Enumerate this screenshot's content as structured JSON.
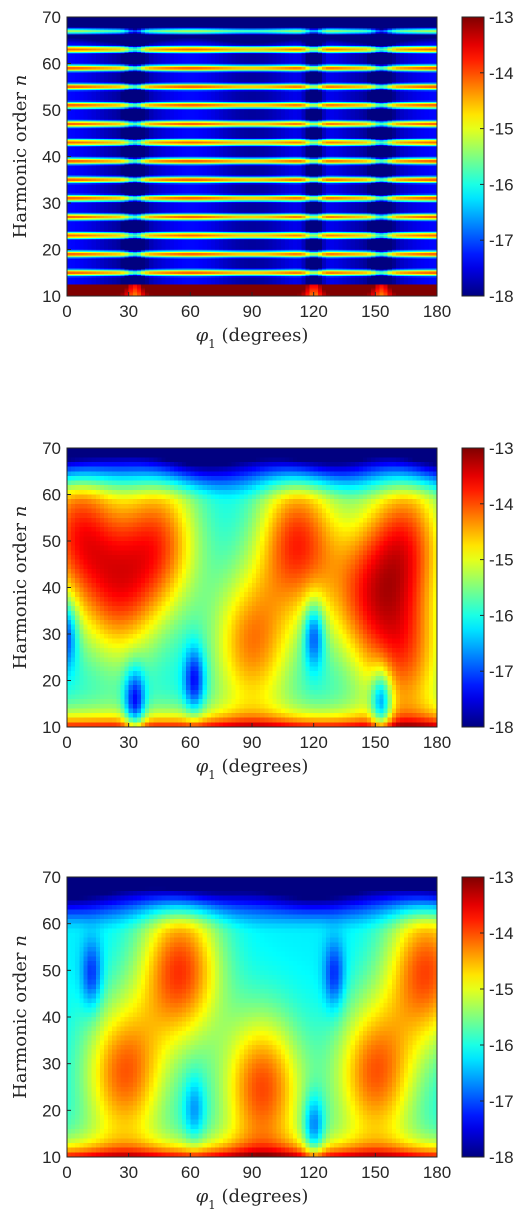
{
  "chart_data": [
    {
      "type": "heatmap",
      "title": "",
      "xlabel": "φ1 (degrees)",
      "ylabel": "Harmonic order n",
      "xlim": [
        0,
        180
      ],
      "ylim": [
        10,
        70
      ],
      "clim": [
        -18,
        -13
      ],
      "colormap": "jet",
      "x_ticks": [
        "0",
        "30",
        "60",
        "90",
        "120",
        "150",
        "180"
      ],
      "y_ticks": [
        "10",
        "20",
        "30",
        "40",
        "50",
        "60",
        "70"
      ],
      "colorbar_ticks": [
        "-13",
        "-14",
        "-15",
        "-16",
        "-17",
        "-18"
      ],
      "description_values": {
        "pattern": "banded",
        "band_count": 30,
        "band_peak": -14.3,
        "band_trough": -17.6,
        "low_order_peak": -13.1,
        "top_value": -17.9,
        "dip_angles": [
          33,
          120,
          153
        ]
      }
    },
    {
      "type": "heatmap",
      "title": "",
      "xlabel": "φ1 (degrees)",
      "ylabel": "Harmonic order n",
      "xlim": [
        0,
        180
      ],
      "ylim": [
        10,
        70
      ],
      "clim": [
        -18,
        -13
      ],
      "colormap": "jet",
      "x_ticks": [
        "0",
        "30",
        "60",
        "90",
        "120",
        "150",
        "180"
      ],
      "y_ticks": [
        "10",
        "20",
        "30",
        "40",
        "50",
        "60",
        "70"
      ],
      "colorbar_ticks": [
        "-13",
        "-14",
        "-15",
        "-16",
        "-17",
        "-18"
      ],
      "hotspots": [
        {
          "phi": 5,
          "n": 52,
          "value": -14.0
        },
        {
          "phi": 25,
          "n": 38,
          "value": -14.4
        },
        {
          "phi": 45,
          "n": 50,
          "value": -14.2
        },
        {
          "phi": 90,
          "n": 28,
          "value": -14.3
        },
        {
          "phi": 112,
          "n": 50,
          "value": -13.9
        },
        {
          "phi": 145,
          "n": 38,
          "value": -14.4
        },
        {
          "phi": 165,
          "n": 50,
          "value": -14.1
        },
        {
          "phi": 165,
          "n": 25,
          "value": -14.4
        }
      ],
      "coldspots": [
        {
          "phi": 33,
          "n": 15,
          "value": -17.0
        },
        {
          "phi": 153,
          "n": 15,
          "value": -17.0
        },
        {
          "phi": 62,
          "n": 20,
          "value": -16.7
        },
        {
          "phi": 120,
          "n": 30,
          "value": -16.7
        },
        {
          "phi": 0,
          "n": 30,
          "value": -16.5
        }
      ]
    },
    {
      "type": "heatmap",
      "title": "",
      "xlabel": "φ1 (degrees)",
      "ylabel": "Harmonic order n",
      "xlim": [
        0,
        180
      ],
      "ylim": [
        10,
        70
      ],
      "clim": [
        -18,
        -13
      ],
      "colormap": "jet",
      "x_ticks": [
        "0",
        "30",
        "60",
        "90",
        "120",
        "150",
        "180"
      ],
      "y_ticks": [
        "10",
        "20",
        "30",
        "40",
        "50",
        "60",
        "70"
      ],
      "colorbar_ticks": [
        "-13",
        "-14",
        "-15",
        "-16",
        "-17",
        "-18"
      ],
      "hotspots": [
        {
          "phi": 28,
          "n": 28,
          "value": -14.1
        },
        {
          "phi": 55,
          "n": 50,
          "value": -13.9
        },
        {
          "phi": 95,
          "n": 25,
          "value": -14.0
        },
        {
          "phi": 150,
          "n": 28,
          "value": -14.1
        },
        {
          "phi": 175,
          "n": 50,
          "value": -14.0
        }
      ],
      "coldspots": [
        {
          "phi": 12,
          "n": 49,
          "value": -16.3
        },
        {
          "phi": 120,
          "n": 16,
          "value": -16.5
        },
        {
          "phi": 130,
          "n": 49,
          "value": -16.3
        },
        {
          "phi": 62,
          "n": 20,
          "value": -16.0
        }
      ]
    }
  ]
}
